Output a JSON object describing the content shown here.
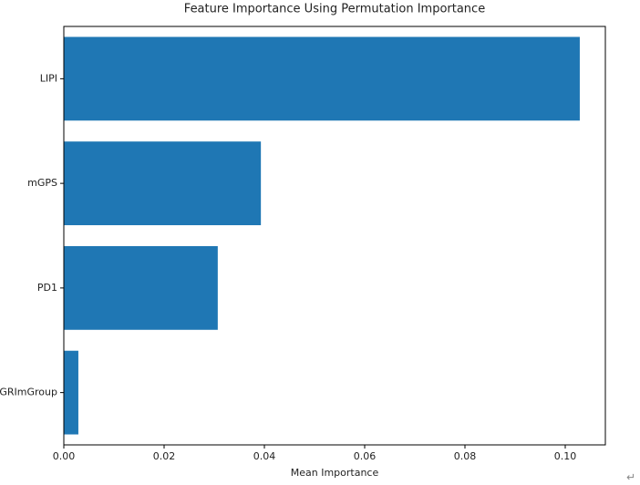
{
  "chart_data": {
    "type": "barh",
    "title": "Feature Importance Using Permutation Importance",
    "x_label": "Mean Importance",
    "categories": [
      "LIPI",
      "mGPS",
      "PD1",
      "GRImGroup"
    ],
    "values": [
      0.1029,
      0.0393,
      0.0307,
      0.0029
    ],
    "color": "#1f77b4",
    "xlim": [
      0,
      0.108
    ],
    "xticks": [
      {
        "value": 0,
        "label": "0.00"
      },
      {
        "value": 0.02,
        "label": "0.02"
      },
      {
        "value": 0.04,
        "label": "0.04"
      },
      {
        "value": 0.06,
        "label": "0.06"
      },
      {
        "value": 0.08,
        "label": "0.08"
      },
      {
        "value": 0.1,
        "label": "0.10"
      }
    ],
    "grid": false
  },
  "corner_mark": "↵"
}
